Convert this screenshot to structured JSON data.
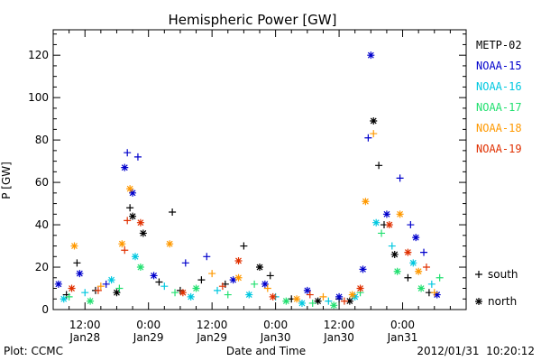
{
  "chart_data": {
    "type": "scatter",
    "title": "Hemispheric Power [GW]",
    "ylabel": "P [GW]",
    "xlabel": "Date and Time",
    "ylim": [
      0,
      132
    ],
    "yticks": [
      0,
      20,
      40,
      60,
      80,
      100,
      120
    ],
    "xlim": [
      "2012-01-28 06:00",
      "2012-01-31 12:00"
    ],
    "xticks": [
      {
        "time": "2012-01-28 12:00",
        "line1": "12:00",
        "line2": "Jan28"
      },
      {
        "time": "2012-01-29 00:00",
        "line1": "0:00",
        "line2": "Jan29"
      },
      {
        "time": "2012-01-29 12:00",
        "line1": "12:00",
        "line2": "Jan29"
      },
      {
        "time": "2012-01-30 00:00",
        "line1": "0:00",
        "line2": "Jan30"
      },
      {
        "time": "2012-01-30 12:00",
        "line1": "12:00",
        "line2": "Jan30"
      },
      {
        "time": "2012-01-31 00:00",
        "line1": "0:00",
        "line2": "Jan31"
      }
    ],
    "grid": false,
    "legend_position": "right",
    "series": [
      {
        "name": "METP-02",
        "color": "#000000",
        "points": [
          [
            "2012-01-28 08:30",
            7,
            "+"
          ],
          [
            "2012-01-28 10:30",
            22,
            "+"
          ],
          [
            "2012-01-28 14:00",
            9,
            "+"
          ],
          [
            "2012-01-28 18:00",
            8,
            "*"
          ],
          [
            "2012-01-28 20:30",
            48,
            "+"
          ],
          [
            "2012-01-28 21:00",
            44,
            "*"
          ],
          [
            "2012-01-28 23:00",
            36,
            "*"
          ],
          [
            "2012-01-29 02:00",
            13,
            "+"
          ],
          [
            "2012-01-29 04:30",
            46,
            "+"
          ],
          [
            "2012-01-29 06:00",
            9,
            "+"
          ],
          [
            "2012-01-29 10:00",
            14,
            "+"
          ],
          [
            "2012-01-29 14:30",
            12,
            "+"
          ],
          [
            "2012-01-29 18:00",
            30,
            "+"
          ],
          [
            "2012-01-29 21:00",
            20,
            "*"
          ],
          [
            "2012-01-29 23:00",
            16,
            "+"
          ],
          [
            "2012-01-30 03:00",
            5,
            "+"
          ],
          [
            "2012-01-30 08:00",
            4,
            "*"
          ],
          [
            "2012-01-30 12:00",
            5,
            "+"
          ],
          [
            "2012-01-30 14:00",
            4,
            "*"
          ],
          [
            "2012-01-30 19:30",
            68,
            "+"
          ],
          [
            "2012-01-30 18:30",
            89,
            "*"
          ],
          [
            "2012-01-30 20:30",
            40,
            "+"
          ],
          [
            "2012-01-30 22:30",
            26,
            "*"
          ],
          [
            "2012-01-31 01:00",
            15,
            "+"
          ],
          [
            "2012-01-31 05:00",
            8,
            "+"
          ]
        ]
      },
      {
        "name": "NOAA-15",
        "color": "#0000cc",
        "points": [
          [
            "2012-01-28 07:00",
            12,
            "*"
          ],
          [
            "2012-01-28 11:00",
            17,
            "*"
          ],
          [
            "2012-01-28 16:00",
            12,
            "+"
          ],
          [
            "2012-01-28 19:30",
            67,
            "*"
          ],
          [
            "2012-01-28 20:00",
            74,
            "+"
          ],
          [
            "2012-01-28 21:00",
            55,
            "*"
          ],
          [
            "2012-01-28 22:00",
            72,
            "+"
          ],
          [
            "2012-01-29 01:00",
            16,
            "*"
          ],
          [
            "2012-01-29 07:00",
            22,
            "+"
          ],
          [
            "2012-01-29 11:00",
            25,
            "+"
          ],
          [
            "2012-01-29 16:00",
            14,
            "*"
          ],
          [
            "2012-01-29 22:00",
            12,
            "*"
          ],
          [
            "2012-01-30 06:00",
            9,
            "*"
          ],
          [
            "2012-01-30 12:00",
            6,
            "*"
          ],
          [
            "2012-01-30 16:30",
            19,
            "*"
          ],
          [
            "2012-01-30 17:30",
            81,
            "+"
          ],
          [
            "2012-01-30 18:00",
            120,
            "*"
          ],
          [
            "2012-01-30 21:00",
            45,
            "*"
          ],
          [
            "2012-01-30 23:30",
            62,
            "+"
          ],
          [
            "2012-01-31 01:30",
            40,
            "+"
          ],
          [
            "2012-01-31 02:30",
            34,
            "*"
          ],
          [
            "2012-01-31 04:00",
            27,
            "+"
          ],
          [
            "2012-01-31 06:30",
            7,
            "*"
          ]
        ]
      },
      {
        "name": "NOAA-16",
        "color": "#00c8e0",
        "points": [
          [
            "2012-01-28 08:00",
            5,
            "*"
          ],
          [
            "2012-01-28 12:00",
            8,
            "+"
          ],
          [
            "2012-01-28 17:00",
            14,
            "*"
          ],
          [
            "2012-01-28 21:30",
            25,
            "*"
          ],
          [
            "2012-01-29 03:00",
            11,
            "+"
          ],
          [
            "2012-01-29 08:00",
            6,
            "*"
          ],
          [
            "2012-01-29 13:00",
            9,
            "+"
          ],
          [
            "2012-01-29 19:00",
            7,
            "*"
          ],
          [
            "2012-01-30 00:00",
            6,
            "+"
          ],
          [
            "2012-01-30 05:00",
            3,
            "*"
          ],
          [
            "2012-01-30 10:00",
            4,
            "+"
          ],
          [
            "2012-01-30 15:00",
            6,
            "*"
          ],
          [
            "2012-01-30 19:00",
            41,
            "*"
          ],
          [
            "2012-01-30 22:00",
            30,
            "+"
          ],
          [
            "2012-01-31 02:00",
            22,
            "*"
          ],
          [
            "2012-01-31 05:30",
            12,
            "+"
          ]
        ]
      },
      {
        "name": "NOAA-17",
        "color": "#22e070",
        "points": [
          [
            "2012-01-28 09:00",
            6,
            "+"
          ],
          [
            "2012-01-28 13:00",
            4,
            "*"
          ],
          [
            "2012-01-28 18:30",
            10,
            "+"
          ],
          [
            "2012-01-28 22:30",
            20,
            "*"
          ],
          [
            "2012-01-29 05:00",
            8,
            "+"
          ],
          [
            "2012-01-29 09:00",
            10,
            "*"
          ],
          [
            "2012-01-29 15:00",
            7,
            "+"
          ],
          [
            "2012-01-29 20:00",
            12,
            "+"
          ],
          [
            "2012-01-30 02:00",
            4,
            "*"
          ],
          [
            "2012-01-30 07:00",
            3,
            "+"
          ],
          [
            "2012-01-30 11:00",
            2,
            "*"
          ],
          [
            "2012-01-30 16:00",
            8,
            "+"
          ],
          [
            "2012-01-30 20:00",
            36,
            "+"
          ],
          [
            "2012-01-30 23:00",
            18,
            "*"
          ],
          [
            "2012-01-31 03:30",
            10,
            "*"
          ],
          [
            "2012-01-31 07:00",
            15,
            "+"
          ]
        ]
      },
      {
        "name": "NOAA-18",
        "color": "#ff9900",
        "points": [
          [
            "2012-01-28 10:00",
            30,
            "*"
          ],
          [
            "2012-01-28 15:00",
            11,
            "+"
          ],
          [
            "2012-01-28 19:00",
            31,
            "*"
          ],
          [
            "2012-01-28 20:30",
            57,
            "*"
          ],
          [
            "2012-01-29 04:00",
            31,
            "*"
          ],
          [
            "2012-01-29 12:00",
            17,
            "+"
          ],
          [
            "2012-01-29 17:00",
            15,
            "*"
          ],
          [
            "2012-01-29 22:30",
            10,
            "+"
          ],
          [
            "2012-01-30 04:00",
            5,
            "*"
          ],
          [
            "2012-01-30 09:00",
            6,
            "+"
          ],
          [
            "2012-01-30 14:30",
            7,
            "*"
          ],
          [
            "2012-01-30 17:00",
            51,
            "*"
          ],
          [
            "2012-01-30 18:30",
            83,
            "+"
          ],
          [
            "2012-01-30 23:30",
            45,
            "*"
          ],
          [
            "2012-01-31 03:00",
            18,
            "*"
          ],
          [
            "2012-01-31 06:00",
            8,
            "+"
          ]
        ]
      },
      {
        "name": "NOAA-19",
        "color": "#e03000",
        "points": [
          [
            "2012-01-28 09:30",
            10,
            "*"
          ],
          [
            "2012-01-28 14:30",
            9,
            "+"
          ],
          [
            "2012-01-28 19:30",
            28,
            "+"
          ],
          [
            "2012-01-28 20:00",
            42,
            "+"
          ],
          [
            "2012-01-28 22:30",
            41,
            "*"
          ],
          [
            "2012-01-29 06:30",
            8,
            "*"
          ],
          [
            "2012-01-29 14:00",
            11,
            "+"
          ],
          [
            "2012-01-29 17:00",
            23,
            "*"
          ],
          [
            "2012-01-29 23:30",
            6,
            "*"
          ],
          [
            "2012-01-30 06:30",
            7,
            "+"
          ],
          [
            "2012-01-30 13:00",
            4,
            "+"
          ],
          [
            "2012-01-30 16:00",
            10,
            "*"
          ],
          [
            "2012-01-30 21:30",
            40,
            "*"
          ],
          [
            "2012-01-31 01:00",
            27,
            "*"
          ],
          [
            "2012-01-31 04:30",
            20,
            "+"
          ]
        ]
      }
    ],
    "marker_legend": [
      {
        "symbol": "+",
        "label": "south"
      },
      {
        "symbol": "*",
        "label": "north"
      }
    ]
  },
  "footer": {
    "credit": "Plot: CCMC",
    "timestamp": "2012/01/31  10:20:12"
  }
}
